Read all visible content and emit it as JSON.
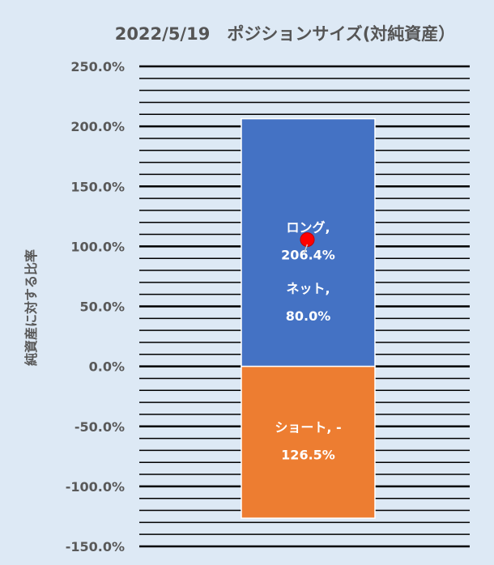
{
  "chart_data": {
    "type": "bar",
    "title": "2022/5/19　ポジションサイズ(対純資産）",
    "ylabel": "純資産に対する比率",
    "xlabel": "",
    "ylim": [
      -150,
      250
    ],
    "yticks": [
      250,
      200,
      150,
      100,
      50,
      0,
      -50,
      -100,
      -150
    ],
    "ytick_labels": [
      "250.0%",
      "200.0%",
      "150.0%",
      "100.0%",
      "50.0%",
      "0.0%",
      "-50.0%",
      "-100.0%",
      "-150.0%"
    ],
    "grid": true,
    "series": [
      {
        "name": "ロング",
        "value": 206.4,
        "color": "#4472c4",
        "label_line1": "ロング,",
        "label_line2": "206.4%"
      },
      {
        "name": "ショート",
        "value": -126.5,
        "color": "#ed7d31",
        "label_line1": "ショート, -",
        "label_line2": "126.5%"
      }
    ],
    "net": {
      "name": "ネット",
      "value": 80.0,
      "color": "#ff0000",
      "label_line1": "ネット,",
      "label_line2": "80.0%"
    }
  }
}
